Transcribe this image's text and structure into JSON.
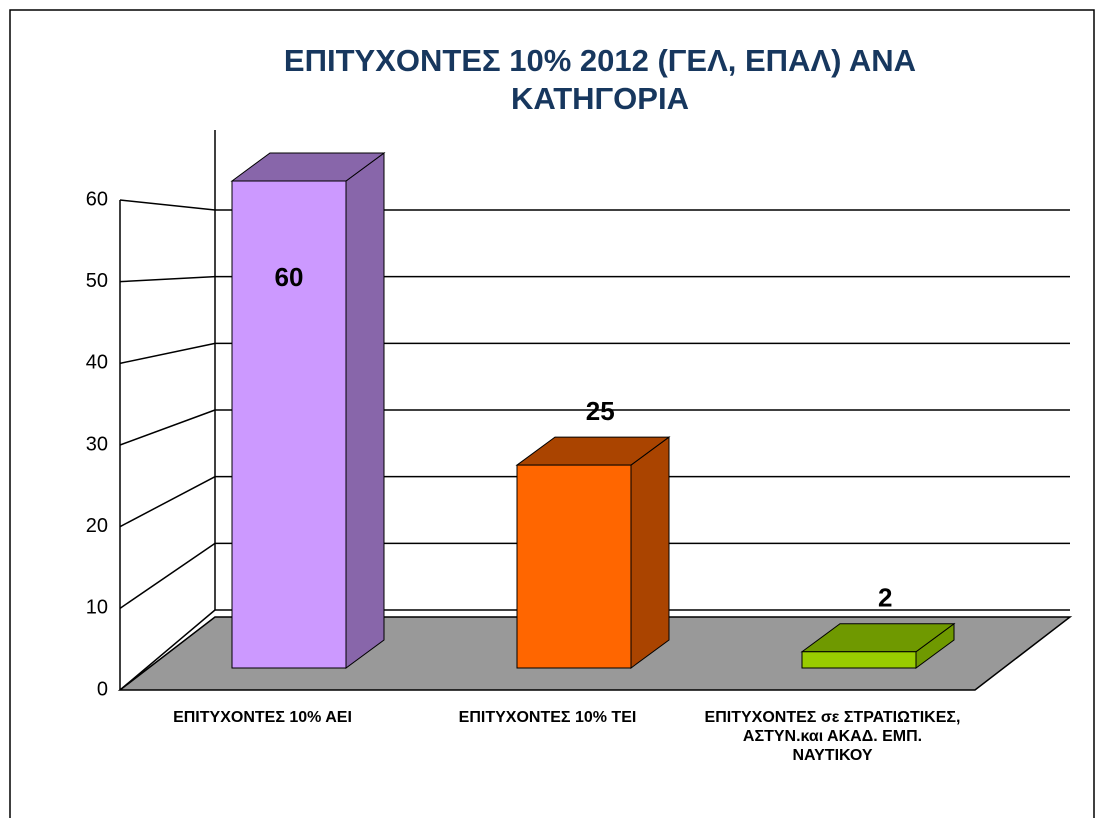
{
  "chart_data": {
    "type": "bar3d",
    "title": "ΕΠΙΤΥΧΟΝΤΕΣ 10% 2012 (ΓΕΛ, ΕΠΑΛ) ΑΝΑ ΚΑΤΗΓΟΡΙΑ",
    "categories": [
      "ΕΠΙΤΥΧΟΝΤΕΣ 10% ΑΕΙ",
      "ΕΠΙΤΥΧΟΝΤΕΣ 10% ΤΕΙ",
      "ΕΠΙΤΥΧΟΝΤΕΣ σε ΣΤΡΑΤΙΩΤΙΚΕΣ, ΑΣΤΥΝ.και ΑΚΑΔ. ΕΜΠ. ΝΑΥΤΙΚΟΥ"
    ],
    "values": [
      60,
      25,
      2
    ],
    "colors": [
      "#cc99ff",
      "#ff6600",
      "#99cc00"
    ],
    "side_colors": [
      "#8866aa",
      "#aa4400",
      "#6f9900"
    ],
    "ylim": [
      0,
      60
    ],
    "yticks": [
      0,
      10,
      20,
      30,
      40,
      50,
      60
    ],
    "grid": true
  }
}
